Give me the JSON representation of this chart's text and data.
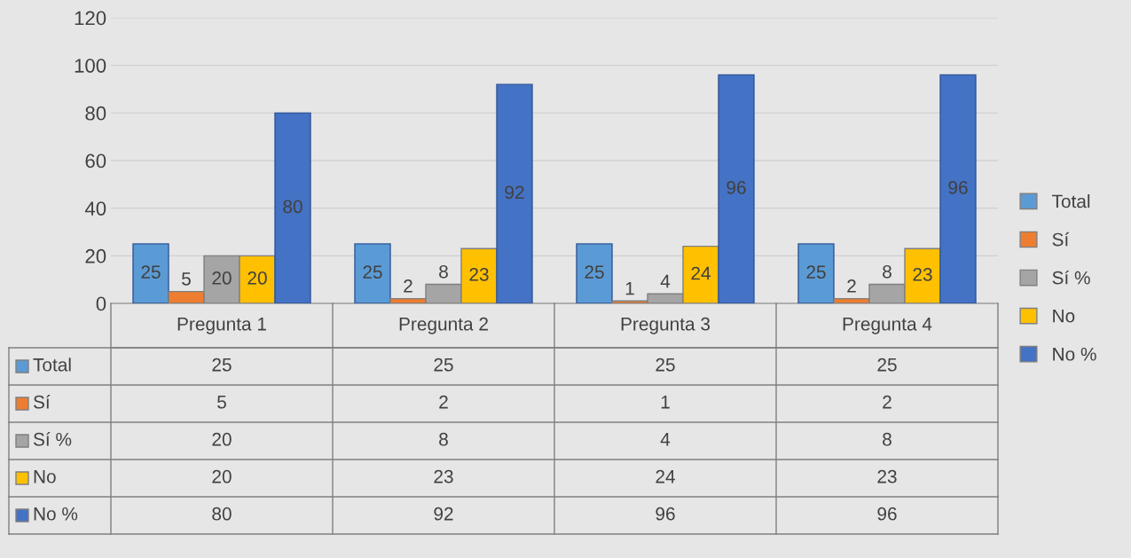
{
  "chart_data": {
    "type": "bar",
    "categories": [
      "Pregunta 1",
      "Pregunta 2",
      "Pregunta 3",
      "Pregunta 4"
    ],
    "series": [
      {
        "name": "Total",
        "color": "#5b9bd5",
        "values": [
          25,
          25,
          25,
          25
        ],
        "value_labels": [
          "25",
          "25",
          "25",
          "25"
        ]
      },
      {
        "name": "Sí",
        "color": "#ed7d31",
        "values": [
          5,
          2,
          1,
          2
        ],
        "value_labels": [
          "5",
          "2",
          "1",
          "2"
        ]
      },
      {
        "name": "Sí %",
        "color": "#a5a5a5",
        "values": [
          20,
          8,
          4,
          8
        ],
        "value_labels": [
          "20",
          "8",
          "4",
          "8"
        ]
      },
      {
        "name": "No",
        "color": "#ffc000",
        "values": [
          20,
          23,
          24,
          23
        ],
        "value_labels": [
          "20",
          "23",
          "24",
          "23"
        ]
      },
      {
        "name": "No %",
        "color": "#4472c4",
        "values": [
          80,
          92,
          96,
          96
        ],
        "value_labels": [
          "80",
          "92",
          "96",
          "96"
        ]
      }
    ],
    "ylim": [
      0,
      120
    ],
    "yticks": [
      0,
      20,
      40,
      60,
      80,
      100,
      120
    ],
    "annotations": [
      "25",
      "25",
      "25",
      "25",
      "5",
      "2",
      "1",
      "2",
      "20",
      "8",
      "4",
      "8",
      "20",
      "23",
      "24",
      "23",
      "80",
      "92",
      "96",
      "96"
    ],
    "grid": "y",
    "legend": "right"
  }
}
